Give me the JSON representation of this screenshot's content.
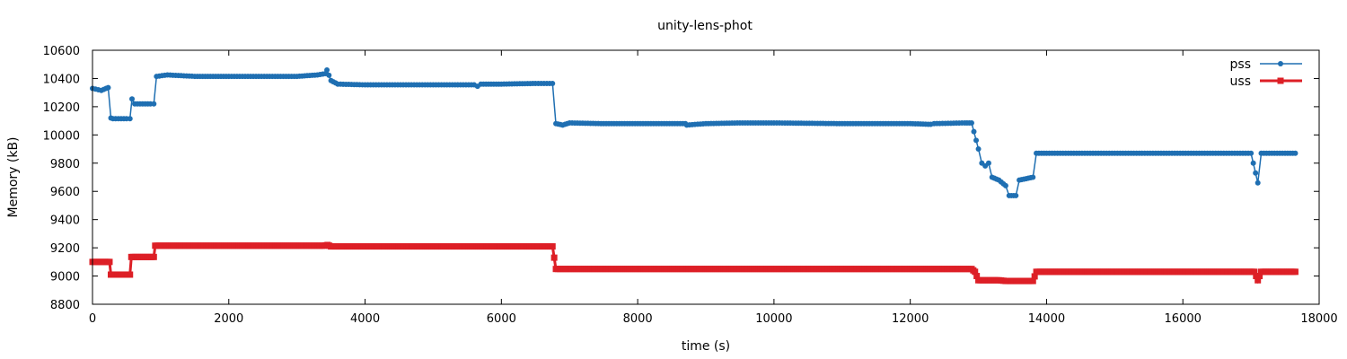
{
  "chart_data": {
    "type": "line",
    "title": "unity-lens-phot",
    "xlabel": "time (s)",
    "ylabel": "Memory (kB)",
    "xlim": [
      0,
      18000
    ],
    "ylim": [
      8800,
      10600
    ],
    "xticks": [
      0,
      2000,
      4000,
      6000,
      8000,
      10000,
      12000,
      14000,
      16000,
      18000
    ],
    "yticks": [
      8800,
      9000,
      9200,
      9400,
      9600,
      9800,
      10000,
      10200,
      10400,
      10600
    ],
    "grid": false,
    "legend_position": "top-right",
    "series": [
      {
        "name": "pss",
        "color": "#1f6fb2",
        "marker": "circle",
        "points": [
          [
            0,
            10330
          ],
          [
            130,
            10315
          ],
          [
            200,
            10330
          ],
          [
            230,
            10335
          ],
          [
            270,
            10120
          ],
          [
            300,
            10115
          ],
          [
            500,
            10115
          ],
          [
            550,
            10115
          ],
          [
            580,
            10255
          ],
          [
            620,
            10220
          ],
          [
            850,
            10220
          ],
          [
            900,
            10220
          ],
          [
            940,
            10415
          ],
          [
            1100,
            10425
          ],
          [
            1500,
            10415
          ],
          [
            2000,
            10415
          ],
          [
            3000,
            10415
          ],
          [
            3300,
            10425
          ],
          [
            3420,
            10435
          ],
          [
            3440,
            10460
          ],
          [
            3500,
            10385
          ],
          [
            3600,
            10360
          ],
          [
            4000,
            10355
          ],
          [
            5000,
            10355
          ],
          [
            5600,
            10355
          ],
          [
            5650,
            10345
          ],
          [
            5700,
            10360
          ],
          [
            6000,
            10360
          ],
          [
            6500,
            10365
          ],
          [
            6750,
            10365
          ],
          [
            6800,
            10080
          ],
          [
            6900,
            10070
          ],
          [
            7000,
            10085
          ],
          [
            7500,
            10080
          ],
          [
            8000,
            10080
          ],
          [
            8700,
            10080
          ],
          [
            8720,
            10070
          ],
          [
            9000,
            10080
          ],
          [
            9500,
            10085
          ],
          [
            10000,
            10085
          ],
          [
            11000,
            10080
          ],
          [
            12000,
            10080
          ],
          [
            12300,
            10075
          ],
          [
            12350,
            10080
          ],
          [
            12800,
            10085
          ],
          [
            12900,
            10085
          ],
          [
            13000,
            9900
          ],
          [
            13050,
            9800
          ],
          [
            13100,
            9780
          ],
          [
            13150,
            9800
          ],
          [
            13200,
            9700
          ],
          [
            13300,
            9680
          ],
          [
            13400,
            9640
          ],
          [
            13450,
            9570
          ],
          [
            13550,
            9570
          ],
          [
            13600,
            9680
          ],
          [
            13700,
            9690
          ],
          [
            13800,
            9700
          ],
          [
            13850,
            9870
          ],
          [
            14000,
            9870
          ],
          [
            15000,
            9870
          ],
          [
            16000,
            9870
          ],
          [
            17000,
            9870
          ],
          [
            17100,
            9660
          ],
          [
            17150,
            9870
          ],
          [
            17500,
            9870
          ],
          [
            17650,
            9870
          ]
        ]
      },
      {
        "name": "uss",
        "color": "#dd1f26",
        "marker": "square",
        "points": [
          [
            0,
            9100
          ],
          [
            250,
            9100
          ],
          [
            270,
            9010
          ],
          [
            550,
            9010
          ],
          [
            570,
            9135
          ],
          [
            900,
            9135
          ],
          [
            920,
            9215
          ],
          [
            3400,
            9215
          ],
          [
            3450,
            9220
          ],
          [
            3500,
            9210
          ],
          [
            6750,
            9210
          ],
          [
            6800,
            9050
          ],
          [
            12900,
            9050
          ],
          [
            12950,
            9030
          ],
          [
            13000,
            8970
          ],
          [
            13300,
            8970
          ],
          [
            13400,
            8965
          ],
          [
            13800,
            8965
          ],
          [
            13850,
            9030
          ],
          [
            17050,
            9030
          ],
          [
            17100,
            8970
          ],
          [
            17150,
            9030
          ],
          [
            17650,
            9030
          ]
        ]
      }
    ]
  }
}
